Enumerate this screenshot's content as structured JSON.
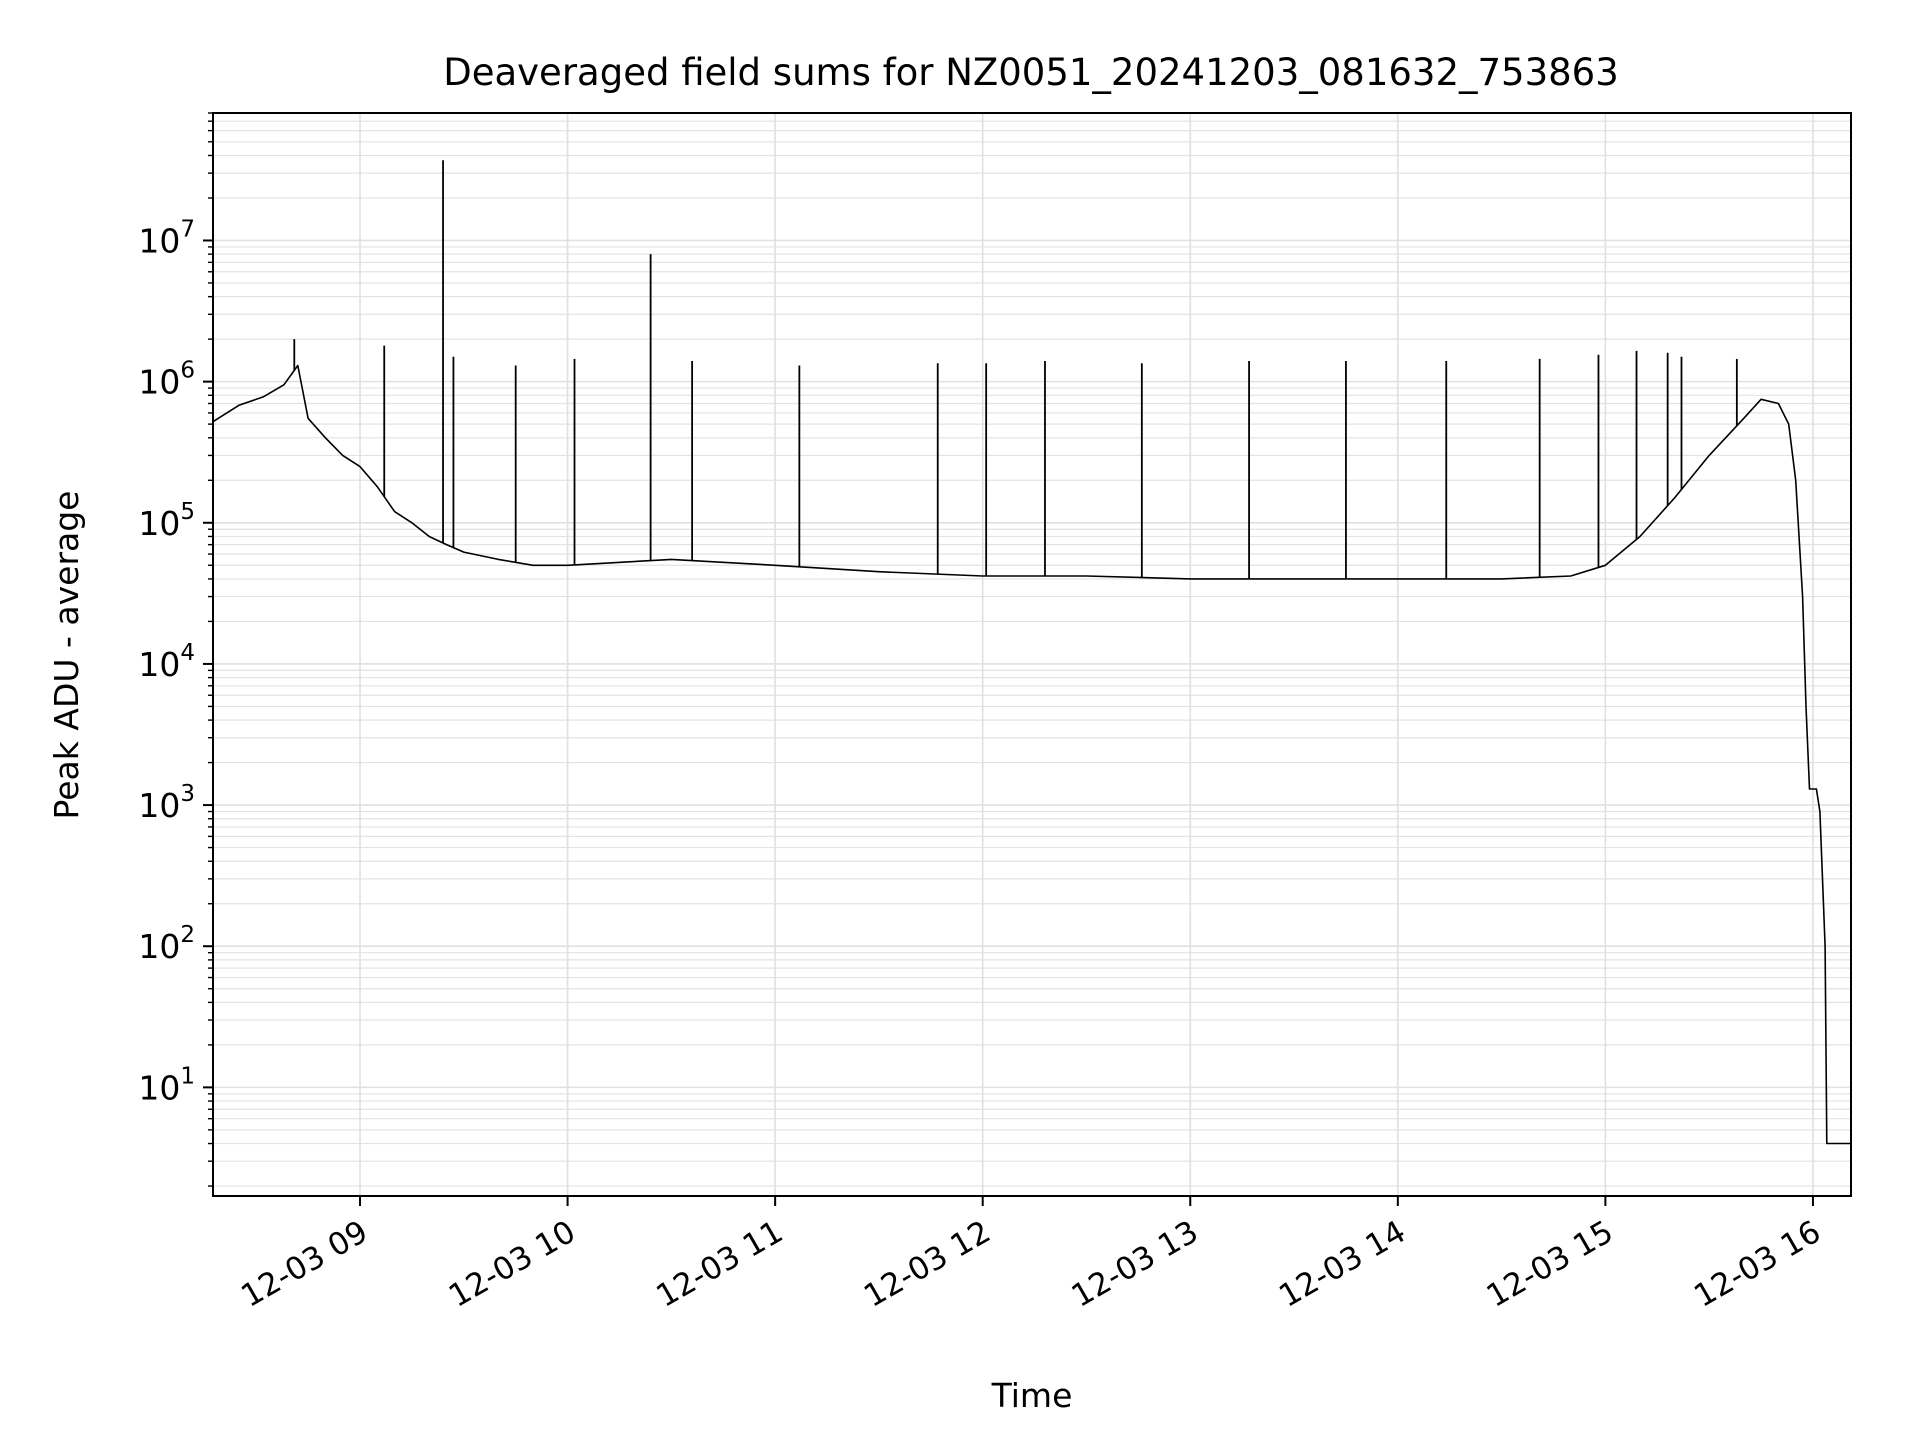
{
  "chart_data": {
    "type": "line",
    "title": "Deaveraged field sums for NZ0051_20241203_081632_753863",
    "xlabel": "Time",
    "ylabel": "Peak ADU - average",
    "yscale": "log",
    "xlim": [
      "2024-12-03T08:17:30",
      "2024-12-03T16:11:00"
    ],
    "ylim": [
      1.7,
      80000000
    ],
    "grid": true,
    "x_tick_labels": [
      "12-03 09",
      "12-03 10",
      "12-03 11",
      "12-03 12",
      "12-03 13",
      "12-03 14",
      "12-03 15",
      "12-03 16"
    ],
    "x_tick_values": [
      "2024-12-03T09:00",
      "2024-12-03T10:00",
      "2024-12-03T11:00",
      "2024-12-03T12:00",
      "2024-12-03T13:00",
      "2024-12-03T14:00",
      "2024-12-03T15:00",
      "2024-12-03T16:00"
    ],
    "y_ticks": [
      {
        "value": 10,
        "base": "10",
        "exp": "1"
      },
      {
        "value": 100,
        "base": "10",
        "exp": "2"
      },
      {
        "value": 1000,
        "base": "10",
        "exp": "3"
      },
      {
        "value": 10000,
        "base": "10",
        "exp": "4"
      },
      {
        "value": 100000,
        "base": "10",
        "exp": "5"
      },
      {
        "value": 1000000,
        "base": "10",
        "exp": "6"
      },
      {
        "value": 10000000,
        "base": "10",
        "exp": "7"
      }
    ],
    "series": [
      {
        "color": "#000000",
        "points": [
          [
            "2024-12-03T08:17:30",
            520000
          ],
          [
            "2024-12-03T08:25:00",
            680000
          ],
          [
            "2024-12-03T08:32:00",
            780000
          ],
          [
            "2024-12-03T08:38:00",
            950000
          ],
          [
            "2024-12-03T08:42:00",
            1300000
          ],
          [
            "2024-12-03T08:45:00",
            550000
          ],
          [
            "2024-12-03T08:50:00",
            400000
          ],
          [
            "2024-12-03T08:55:00",
            300000
          ],
          [
            "2024-12-03T09:00:00",
            250000
          ],
          [
            "2024-12-03T09:05:00",
            180000
          ],
          [
            "2024-12-03T09:10:00",
            120000
          ],
          [
            "2024-12-03T09:15:00",
            100000
          ],
          [
            "2024-12-03T09:20:00",
            80000
          ],
          [
            "2024-12-03T09:25:00",
            70000
          ],
          [
            "2024-12-03T09:30:00",
            62000
          ],
          [
            "2024-12-03T09:40:00",
            55000
          ],
          [
            "2024-12-03T09:50:00",
            50000
          ],
          [
            "2024-12-03T10:00:00",
            50000
          ],
          [
            "2024-12-03T10:30:00",
            55000
          ],
          [
            "2024-12-03T11:00:00",
            50000
          ],
          [
            "2024-12-03T11:30:00",
            45000
          ],
          [
            "2024-12-03T12:00:00",
            42000
          ],
          [
            "2024-12-03T12:30:00",
            42000
          ],
          [
            "2024-12-03T13:00:00",
            40000
          ],
          [
            "2024-12-03T13:30:00",
            40000
          ],
          [
            "2024-12-03T14:00:00",
            40000
          ],
          [
            "2024-12-03T14:30:00",
            40000
          ],
          [
            "2024-12-03T14:50:00",
            42000
          ],
          [
            "2024-12-03T15:00:00",
            50000
          ],
          [
            "2024-12-03T15:10:00",
            80000
          ],
          [
            "2024-12-03T15:20:00",
            150000
          ],
          [
            "2024-12-03T15:30:00",
            300000
          ],
          [
            "2024-12-03T15:40:00",
            550000
          ],
          [
            "2024-12-03T15:45:00",
            750000
          ],
          [
            "2024-12-03T15:50:00",
            700000
          ],
          [
            "2024-12-03T15:53:00",
            500000
          ],
          [
            "2024-12-03T15:55:00",
            200000
          ],
          [
            "2024-12-03T15:57:00",
            30000
          ],
          [
            "2024-12-03T15:58:00",
            5000
          ],
          [
            "2024-12-03T15:59:00",
            1300
          ],
          [
            "2024-12-03T16:01:00",
            1300
          ],
          [
            "2024-12-03T16:02:00",
            900
          ],
          [
            "2024-12-03T16:03:30",
            100
          ],
          [
            "2024-12-03T16:04:00",
            4
          ],
          [
            "2024-12-03T16:11:00",
            4
          ]
        ],
        "spikes": [
          [
            "2024-12-03T08:41:00",
            2000000
          ],
          [
            "2024-12-03T09:07:00",
            1800000
          ],
          [
            "2024-12-03T09:24:00",
            37000000
          ],
          [
            "2024-12-03T09:27:00",
            1500000
          ],
          [
            "2024-12-03T09:45:00",
            1300000
          ],
          [
            "2024-12-03T10:02:00",
            1450000
          ],
          [
            "2024-12-03T10:24:00",
            8000000
          ],
          [
            "2024-12-03T10:36:00",
            1400000
          ],
          [
            "2024-12-03T11:07:00",
            1300000
          ],
          [
            "2024-12-03T11:47:00",
            1350000
          ],
          [
            "2024-12-03T12:01:00",
            1350000
          ],
          [
            "2024-12-03T12:18:00",
            1400000
          ],
          [
            "2024-12-03T12:46:00",
            1350000
          ],
          [
            "2024-12-03T13:17:00",
            1400000
          ],
          [
            "2024-12-03T13:45:00",
            1400000
          ],
          [
            "2024-12-03T14:14:00",
            1400000
          ],
          [
            "2024-12-03T14:41:00",
            1450000
          ],
          [
            "2024-12-03T14:58:00",
            1550000
          ],
          [
            "2024-12-03T15:09:00",
            1650000
          ],
          [
            "2024-12-03T15:18:00",
            1600000
          ],
          [
            "2024-12-03T15:22:00",
            1500000
          ],
          [
            "2024-12-03T15:38:00",
            1450000
          ]
        ]
      }
    ]
  }
}
